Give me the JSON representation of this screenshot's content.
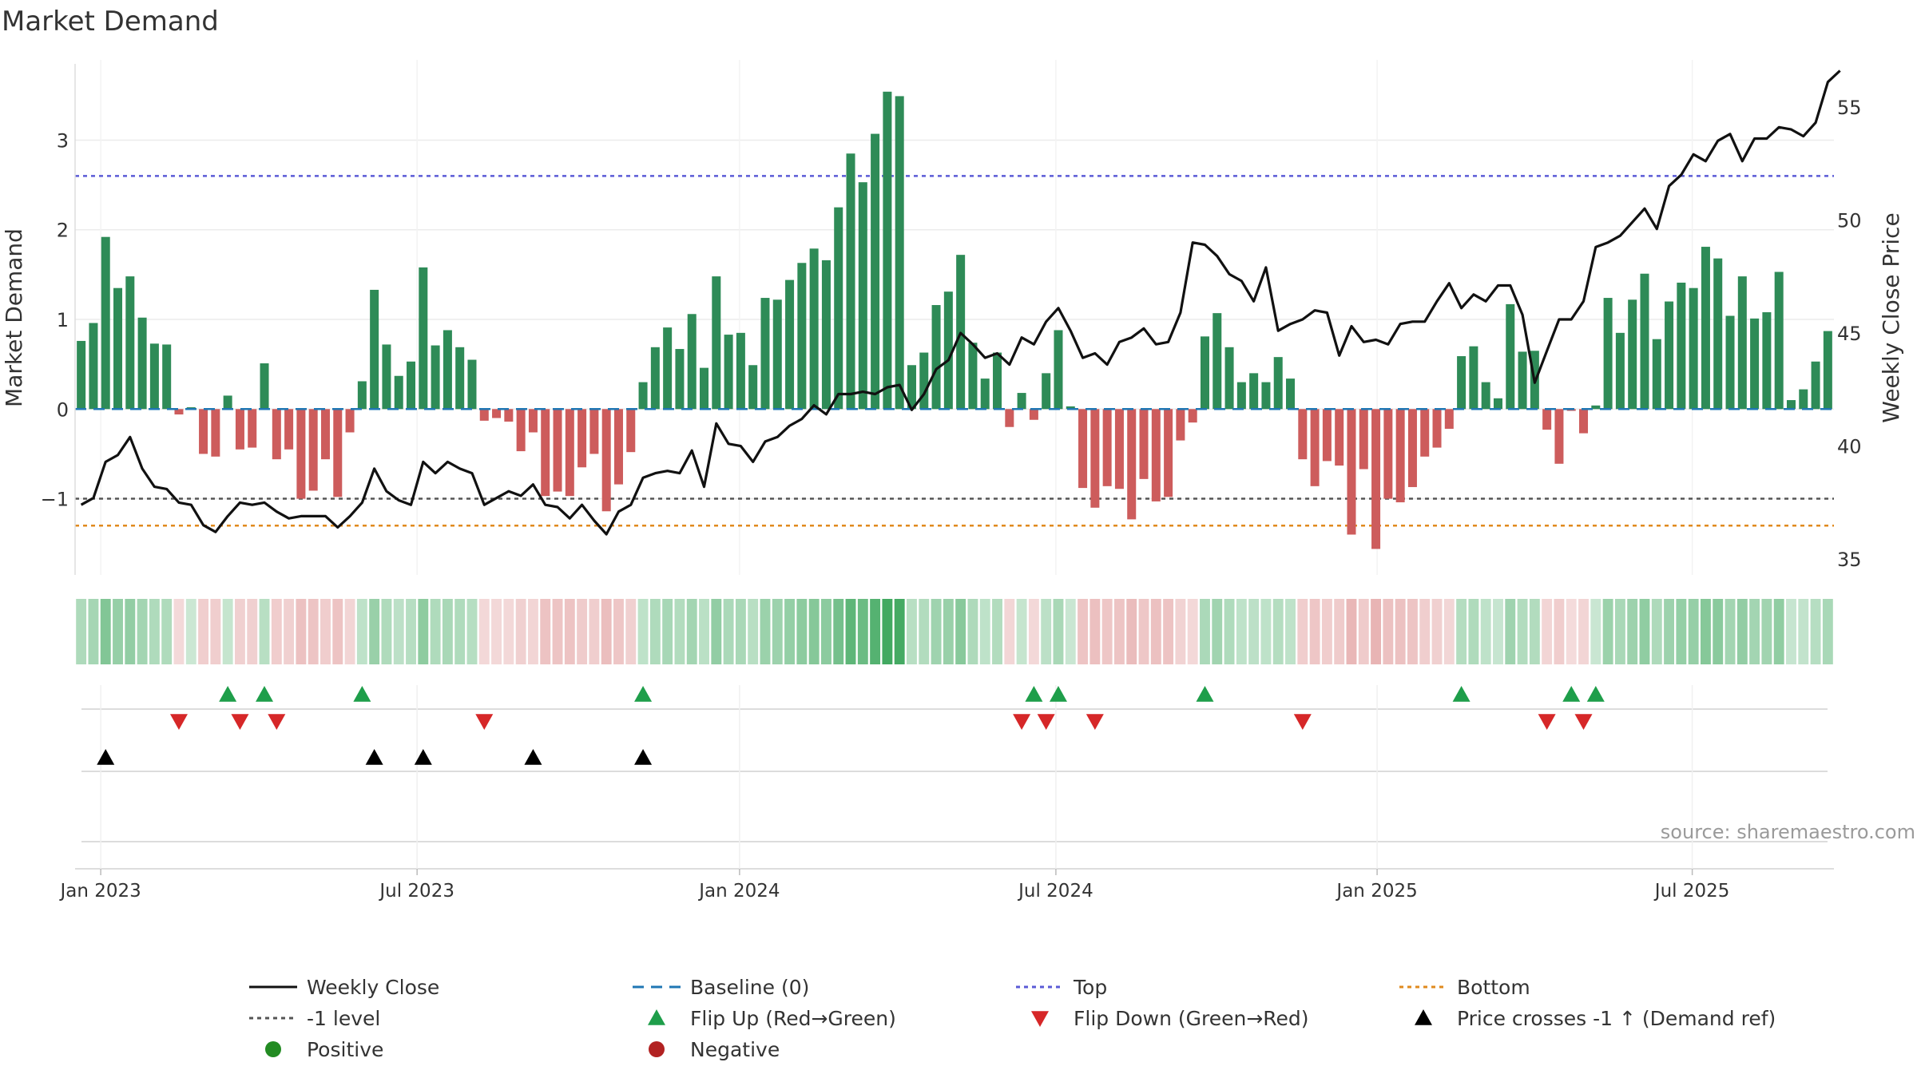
{
  "title": "Market Demand",
  "source_text": "source: sharemaestro.com",
  "colors": {
    "positive": "#2e8b57",
    "negative": "#cd5c5c",
    "price": "#111111",
    "baseline": "#1f77b4",
    "top": "#5b5bd6",
    "bottom": "#e08a1e",
    "minus_one": "#555555",
    "flip_up": "#1e9e4a",
    "flip_down": "#d62728",
    "cross": "#000000"
  },
  "chart_data": {
    "type": "bar",
    "title": "Market Demand",
    "xlabel": "",
    "ylabel": "Market Demand",
    "ylabel_right": "Weekly Close Price",
    "ylim": [
      -1.85,
      3.85
    ],
    "ylim_right": [
      34.3,
      56.9
    ],
    "yticks": [
      3,
      2,
      1,
      0,
      -1
    ],
    "ytick_labels": [
      "3",
      "2",
      "1",
      "0",
      "−1"
    ],
    "yticks_right": [
      55,
      50,
      45,
      40,
      35
    ],
    "x_tick_labels": [
      "Jan 2023",
      "Jul 2023",
      "Jan 2024",
      "Jul 2024",
      "Jan 2025",
      "Jul 2025"
    ],
    "x_tick_weeks": [
      1.6,
      27.5,
      53.9,
      79.8,
      106.1,
      131.9
    ],
    "levels": {
      "top": 2.6,
      "bottom": -1.3,
      "minus_one": -1,
      "baseline": 0
    },
    "demand": [
      0.76,
      0.96,
      1.92,
      1.35,
      1.48,
      1.02,
      0.73,
      0.72,
      -0.06,
      0.02,
      -0.5,
      -0.53,
      0.15,
      -0.45,
      -0.43,
      0.51,
      -0.56,
      -0.45,
      -1.0,
      -0.91,
      -0.56,
      -0.98,
      -0.26,
      0.31,
      1.33,
      0.72,
      0.37,
      0.53,
      1.58,
      0.71,
      0.88,
      0.69,
      0.55,
      -0.13,
      -0.1,
      -0.14,
      -0.47,
      -0.26,
      -0.97,
      -0.92,
      -0.97,
      -0.65,
      -0.5,
      -1.14,
      -0.84,
      -0.48,
      0.3,
      0.69,
      0.91,
      0.67,
      1.06,
      0.46,
      1.48,
      0.83,
      0.85,
      0.49,
      1.24,
      1.22,
      1.44,
      1.63,
      1.79,
      1.66,
      2.25,
      2.85,
      2.53,
      3.07,
      3.54,
      3.49,
      0.49,
      0.63,
      1.16,
      1.31,
      1.72,
      0.74,
      0.34,
      0.63,
      -0.2,
      0.18,
      -0.12,
      0.4,
      0.88,
      0.03,
      -0.88,
      -1.1,
      -0.86,
      -0.89,
      -1.23,
      -0.78,
      -1.03,
      -0.98,
      -0.35,
      -0.15,
      0.81,
      1.07,
      0.69,
      0.3,
      0.4,
      0.3,
      0.58,
      0.34,
      -0.56,
      -0.86,
      -0.58,
      -0.63,
      -1.4,
      -0.67,
      -1.56,
      -1.0,
      -1.04,
      -0.87,
      -0.53,
      -0.43,
      -0.22,
      0.59,
      0.7,
      0.3,
      0.12,
      1.17,
      0.64,
      0.65,
      -0.23,
      -0.61,
      -0.02,
      -0.27,
      0.04,
      1.24,
      0.85,
      1.22,
      1.51,
      0.78,
      1.2,
      1.41,
      1.35,
      1.81,
      1.68,
      1.04,
      1.48,
      1.01,
      1.08,
      1.53,
      0.1,
      0.22,
      0.53,
      0.87
    ],
    "weekly_close": [
      37.4,
      37.7,
      39.3,
      39.6,
      40.4,
      39.0,
      38.2,
      38.1,
      37.5,
      37.4,
      36.5,
      36.2,
      36.9,
      37.5,
      37.4,
      37.5,
      37.1,
      36.8,
      36.9,
      36.9,
      36.9,
      36.4,
      36.9,
      37.5,
      39.0,
      38.0,
      37.6,
      37.4,
      39.3,
      38.8,
      39.3,
      39.0,
      38.8,
      37.4,
      37.7,
      38.0,
      37.8,
      38.3,
      37.4,
      37.3,
      36.8,
      37.4,
      36.7,
      36.1,
      37.1,
      37.4,
      38.6,
      38.8,
      38.9,
      38.8,
      39.8,
      38.2,
      41.0,
      40.1,
      40.0,
      39.3,
      40.2,
      40.4,
      40.9,
      41.2,
      41.8,
      41.4,
      42.3,
      42.3,
      42.4,
      42.3,
      42.6,
      42.7,
      41.6,
      42.3,
      43.4,
      43.8,
      45.0,
      44.5,
      43.9,
      44.1,
      43.6,
      44.8,
      44.5,
      45.5,
      46.1,
      45.1,
      43.9,
      44.1,
      43.6,
      44.6,
      44.8,
      45.2,
      44.5,
      44.6,
      45.9,
      49.0,
      48.9,
      48.4,
      47.6,
      47.3,
      46.4,
      47.9,
      45.1,
      45.4,
      45.6,
      46.0,
      45.9,
      44.0,
      45.3,
      44.6,
      44.7,
      44.5,
      45.4,
      45.5,
      45.5,
      46.4,
      47.2,
      46.1,
      46.7,
      46.4,
      47.1,
      47.1,
      45.8,
      42.8,
      44.2,
      45.6,
      45.6,
      46.4,
      48.8,
      49.0,
      49.3,
      49.9,
      50.5,
      49.6,
      51.5,
      52.0,
      52.9,
      52.6,
      53.5,
      53.8,
      52.6,
      53.6,
      53.6,
      54.1,
      54.0,
      53.7,
      54.3,
      56.1,
      56.6
    ],
    "strip_rows": [
      {
        "name": "Flip Up (Red→Green)",
        "marker": "triangle-up",
        "color": "flip_up",
        "weeks": [
          12,
          15,
          23,
          46,
          78,
          80,
          92,
          113,
          122,
          124
        ]
      },
      {
        "name": "Flip Down (Green→Red)",
        "marker": "triangle-down",
        "color": "flip_down",
        "weeks": [
          8,
          13,
          16,
          33,
          77,
          79,
          83,
          100,
          120,
          123
        ]
      },
      {
        "name": "Price crosses -1 ↑ (Demand ref)",
        "marker": "triangle-up",
        "color": "cross",
        "weeks": [
          2,
          24,
          28,
          37,
          46
        ]
      }
    ]
  },
  "legend": [
    {
      "label": "Weekly Close",
      "symbol": "line-solid",
      "color": "#111111"
    },
    {
      "label": "Baseline (0)",
      "symbol": "line-dash",
      "color": "#1f77b4"
    },
    {
      "label": "Top",
      "symbol": "line-dot",
      "color": "#5b5bd6"
    },
    {
      "label": "Bottom",
      "symbol": "line-dot",
      "color": "#e08a1e"
    },
    {
      "label": "-1 level",
      "symbol": "line-dot",
      "color": "#555555"
    },
    {
      "label": "Flip Up (Red→Green)",
      "symbol": "triangle-up",
      "color": "#1e9e4a"
    },
    {
      "label": "Flip Down (Green→Red)",
      "symbol": "triangle-down",
      "color": "#d62728"
    },
    {
      "label": "Price crosses -1 ↑ (Demand ref)",
      "symbol": "triangle-up",
      "color": "#000000"
    },
    {
      "label": "Positive",
      "symbol": "dot",
      "color": "#228b22"
    },
    {
      "label": "Negative",
      "symbol": "dot",
      "color": "#b22222"
    }
  ]
}
